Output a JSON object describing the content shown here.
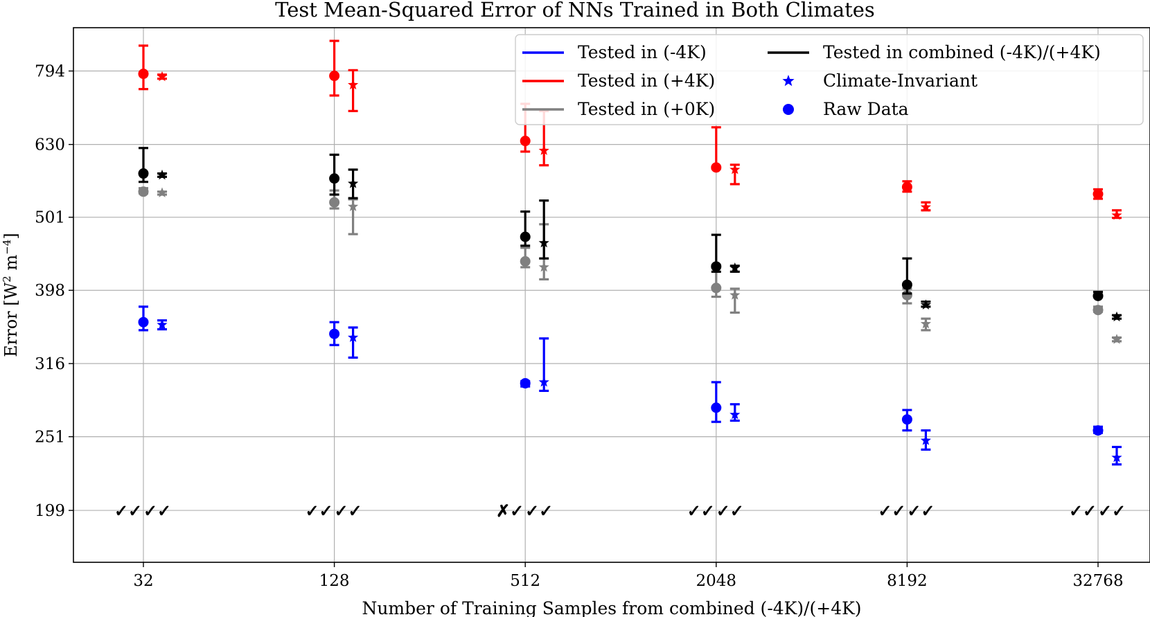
{
  "chart_data": {
    "type": "scatter",
    "title": "Test Mean-Squared Error of NNs Trained in Both Climates",
    "xlabel": "Number of Training Samples from combined (-4K)/(+4K)",
    "ylabel_main": "Error [W",
    "ylabel_sup1": "2",
    "ylabel_mid": " m",
    "ylabel_sup2": "−4",
    "ylabel_end": "]",
    "scale": "log",
    "ylim": [
      169,
      910
    ],
    "categories": [
      "32",
      "128",
      "512",
      "2048",
      "8192",
      "32768"
    ],
    "yticks": [
      199,
      251,
      316,
      398,
      501,
      630,
      794
    ],
    "ytick_labels": [
      "199",
      "251",
      "316",
      "398",
      "501",
      "630",
      "794"
    ],
    "legend": {
      "position": "top-right",
      "entries": [
        {
          "label": "Tested in (-4K)",
          "kind": "line",
          "color": "#0000ff"
        },
        {
          "label": "Tested in (+4K)",
          "kind": "line",
          "color": "#ff0000"
        },
        {
          "label": "Tested in (+0K)",
          "kind": "line",
          "color": "#808080"
        },
        {
          "label": "Tested in combined (-4K)/(+4K)",
          "kind": "line",
          "color": "#000000"
        },
        {
          "label": "Climate-Invariant",
          "kind": "star",
          "color": "#0000ff"
        },
        {
          "label": "Raw Data",
          "kind": "circle",
          "color": "#0000ff"
        }
      ]
    },
    "series": [
      {
        "name": "Tested in (-4K)",
        "color": "#0000ff",
        "raw": [
          [
            360,
            351,
            378
          ],
          [
            347,
            335,
            360
          ],
          [
            297,
            294,
            299
          ],
          [
            275,
            263,
            298
          ],
          [
            265,
            256,
            273
          ],
          [
            256,
            254,
            259
          ]
        ],
        "ci": [
          [
            357,
            352,
            362
          ],
          [
            343,
            322,
            354
          ],
          [
            298,
            290,
            342
          ],
          [
            269,
            264,
            278
          ],
          [
            248,
            241,
            256
          ],
          [
            235,
            230,
            243
          ]
        ]
      },
      {
        "name": "Tested in (+4K)",
        "color": "#ff0000",
        "raw": [
          [
            787,
            750,
            860
          ],
          [
            782,
            735,
            873
          ],
          [
            637,
            616,
            716
          ],
          [
            586,
            584,
            665
          ],
          [
            551,
            543,
            561
          ],
          [
            539,
            531,
            547
          ]
        ],
        "ci": [
          [
            780,
            775,
            785
          ],
          [
            760,
            700,
            796
          ],
          [
            618,
            590,
            700
          ],
          [
            582,
            556,
            591
          ],
          [
            517,
            512,
            525
          ],
          [
            504,
            500,
            512
          ]
        ]
      },
      {
        "name": "Tested in (+0K)",
        "color": "#808080",
        "raw": [
          [
            543,
            540,
            549
          ],
          [
            525,
            515,
            545
          ],
          [
            436,
            428,
            455
          ],
          [
            401,
            390,
            431
          ],
          [
            392,
            382,
            400
          ],
          [
            374,
            372,
            378
          ]
        ],
        "ci": [
          [
            541,
            538,
            543
          ],
          [
            518,
            475,
            530
          ],
          [
            428,
            412,
            490
          ],
          [
            392,
            371,
            400
          ],
          [
            358,
            351,
            364
          ],
          [
            341,
            339,
            343
          ]
        ]
      },
      {
        "name": "Tested in combined (-4K)/(+4K)",
        "color": "#000000",
        "raw": [
          [
            575,
            560,
            623
          ],
          [
            566,
            538,
            610
          ],
          [
            471,
            458,
            510
          ],
          [
            429,
            422,
            474
          ],
          [
            405,
            394,
            440
          ],
          [
            391,
            390,
            396
          ]
        ],
        "ci": [
          [
            572,
            569,
            575
          ],
          [
            557,
            532,
            582
          ],
          [
            462,
            440,
            528
          ],
          [
            427,
            422,
            430
          ],
          [
            380,
            378,
            384
          ],
          [
            366,
            364,
            368
          ]
        ]
      }
    ],
    "markers_bottom": [
      {
        "category": "32",
        "blue": "✓",
        "red": "✓",
        "black": "✓",
        "gray": "✓"
      },
      {
        "category": "128",
        "blue": "✓",
        "red": "✓",
        "black": "✓",
        "gray": "✓"
      },
      {
        "category": "512",
        "blue": "✗",
        "red": "✓",
        "black": "✓",
        "gray": "✓"
      },
      {
        "category": "2048",
        "blue": "✓",
        "red": "✓",
        "black": "✓",
        "gray": "✓"
      },
      {
        "category": "8192",
        "blue": "✓",
        "red": "✓",
        "black": "✓",
        "gray": "✓"
      },
      {
        "category": "32768",
        "blue": "✓",
        "red": "✓",
        "black": "✓",
        "gray": "✓"
      }
    ],
    "marker_level": 199
  }
}
